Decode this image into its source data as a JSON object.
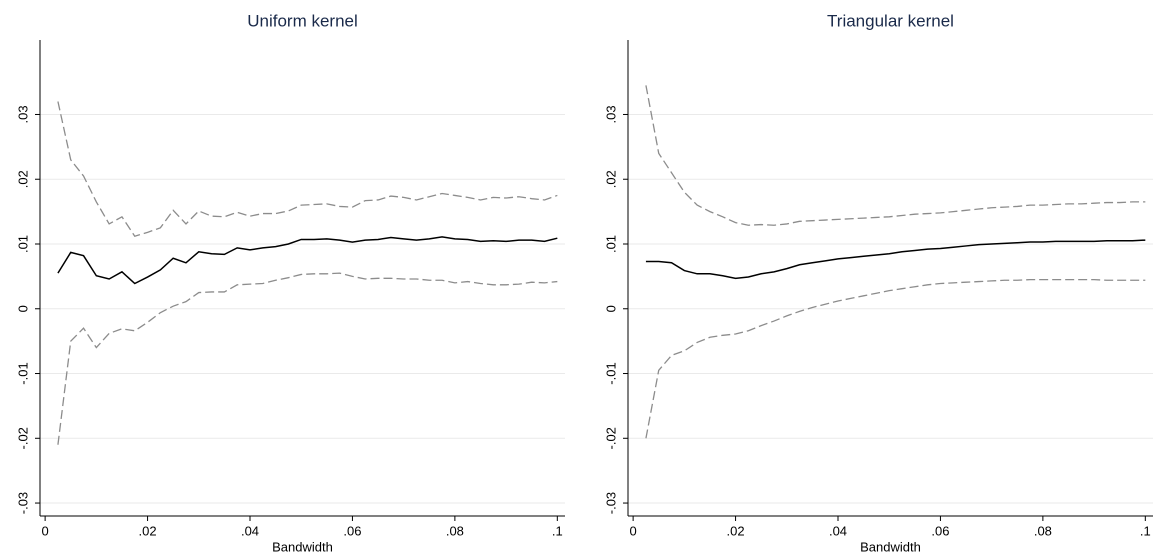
{
  "chart_data": [
    {
      "type": "line",
      "title": "Uniform kernel",
      "xlabel": "Bandwidth",
      "x": [
        0.0025,
        0.005,
        0.0075,
        0.01,
        0.0125,
        0.015,
        0.0175,
        0.02,
        0.0225,
        0.025,
        0.0275,
        0.03,
        0.0325,
        0.035,
        0.0375,
        0.04,
        0.0425,
        0.045,
        0.0475,
        0.05,
        0.0525,
        0.055,
        0.0575,
        0.06,
        0.0625,
        0.065,
        0.0675,
        0.07,
        0.0725,
        0.075,
        0.0775,
        0.08,
        0.0825,
        0.085,
        0.0875,
        0.09,
        0.0925,
        0.095,
        0.0975,
        0.1
      ],
      "series": [
        {
          "color": "#000000",
          "dash": false,
          "values": [
            0.0055,
            0.0087,
            0.0082,
            0.0051,
            0.0046,
            0.0057,
            0.0039,
            0.0049,
            0.006,
            0.0078,
            0.0071,
            0.0088,
            0.0085,
            0.0084,
            0.0094,
            0.0091,
            0.0094,
            0.0096,
            0.01,
            0.0107,
            0.0107,
            0.0108,
            0.0106,
            0.0103,
            0.0106,
            0.0107,
            0.011,
            0.0108,
            0.0106,
            0.0108,
            0.0111,
            0.0108,
            0.0107,
            0.0104,
            0.0105,
            0.0104,
            0.0106,
            0.0106,
            0.0104,
            0.0109
          ]
        },
        {
          "color": "#8c8c8c",
          "dash": true,
          "values": [
            0.032,
            0.023,
            0.0205,
            0.0165,
            0.0131,
            0.0142,
            0.0112,
            0.0118,
            0.0125,
            0.0152,
            0.0131,
            0.0151,
            0.0143,
            0.0142,
            0.0149,
            0.0143,
            0.0147,
            0.0147,
            0.0151,
            0.016,
            0.0161,
            0.0162,
            0.0158,
            0.0157,
            0.0167,
            0.0168,
            0.0174,
            0.0172,
            0.0168,
            0.0173,
            0.0178,
            0.0175,
            0.0172,
            0.0168,
            0.0172,
            0.0171,
            0.0173,
            0.017,
            0.0168,
            0.0175
          ]
        },
        {
          "color": "#8c8c8c",
          "dash": true,
          "values": [
            -0.021,
            -0.005,
            -0.003,
            -0.006,
            -0.0038,
            -0.0031,
            -0.0034,
            -0.0021,
            -0.0006,
            0.0004,
            0.0011,
            0.0025,
            0.0026,
            0.0026,
            0.0037,
            0.0038,
            0.0039,
            0.0044,
            0.0048,
            0.0053,
            0.0054,
            0.0054,
            0.0055,
            0.005,
            0.0046,
            0.0047,
            0.0047,
            0.0046,
            0.0046,
            0.0044,
            0.0044,
            0.004,
            0.0042,
            0.0039,
            0.0037,
            0.0037,
            0.0038,
            0.0041,
            0.004,
            0.0042
          ]
        }
      ],
      "xlim": [
        -0.001,
        0.1015
      ],
      "ylim": [
        -0.032,
        0.0415
      ],
      "xticks": [
        0,
        {
          "value": 0.02,
          "label": ".02"
        },
        {
          "value": 0.04,
          "label": ".04"
        },
        {
          "value": 0.06,
          "label": ".06"
        },
        {
          "value": 0.08,
          "label": ".08"
        },
        {
          "value": 0.1,
          "label": ".1"
        }
      ],
      "yticks": [
        {
          "value": -0.03,
          "label": "-.03"
        },
        {
          "value": -0.02,
          "label": "-.02"
        },
        {
          "value": -0.01,
          "label": "-.01"
        },
        0,
        {
          "value": 0.01,
          "label": ".01"
        },
        {
          "value": 0.02,
          "label": ".02"
        },
        {
          "value": 0.03,
          "label": ".03"
        }
      ],
      "grid": true
    },
    {
      "type": "line",
      "title": "Triangular kernel",
      "xlabel": "Bandwidth",
      "x": [
        0.0025,
        0.005,
        0.0075,
        0.01,
        0.0125,
        0.015,
        0.0175,
        0.02,
        0.0225,
        0.025,
        0.0275,
        0.03,
        0.0325,
        0.035,
        0.0375,
        0.04,
        0.0425,
        0.045,
        0.0475,
        0.05,
        0.0525,
        0.055,
        0.0575,
        0.06,
        0.0625,
        0.065,
        0.0675,
        0.07,
        0.0725,
        0.075,
        0.0775,
        0.08,
        0.0825,
        0.085,
        0.0875,
        0.09,
        0.0925,
        0.095,
        0.0975,
        0.1
      ],
      "series": [
        {
          "color": "#000000",
          "dash": false,
          "values": [
            0.0073,
            0.0073,
            0.0071,
            0.0059,
            0.0054,
            0.0054,
            0.0051,
            0.0047,
            0.0049,
            0.0054,
            0.0057,
            0.0062,
            0.0068,
            0.0071,
            0.0074,
            0.0077,
            0.0079,
            0.0081,
            0.0083,
            0.0085,
            0.0088,
            0.009,
            0.0092,
            0.0093,
            0.0095,
            0.0097,
            0.0099,
            0.01,
            0.0101,
            0.0102,
            0.0103,
            0.0103,
            0.0104,
            0.0104,
            0.0104,
            0.0104,
            0.0105,
            0.0105,
            0.0105,
            0.0106
          ]
        },
        {
          "color": "#8c8c8c",
          "dash": true,
          "values": [
            0.0345,
            0.024,
            0.021,
            0.018,
            0.016,
            0.015,
            0.0142,
            0.0133,
            0.0129,
            0.013,
            0.0129,
            0.0131,
            0.0135,
            0.0136,
            0.0137,
            0.0138,
            0.0139,
            0.014,
            0.0141,
            0.0142,
            0.0144,
            0.0146,
            0.0147,
            0.0148,
            0.015,
            0.0152,
            0.0154,
            0.0156,
            0.0157,
            0.0158,
            0.016,
            0.016,
            0.0161,
            0.0162,
            0.0162,
            0.0163,
            0.0164,
            0.0164,
            0.0165,
            0.0165
          ]
        },
        {
          "color": "#8c8c8c",
          "dash": true,
          "values": [
            -0.02,
            -0.0095,
            -0.0072,
            -0.0065,
            -0.0052,
            -0.0044,
            -0.0041,
            -0.0039,
            -0.0034,
            -0.0026,
            -0.0019,
            -0.0011,
            -0.0004,
            0.0002,
            0.0007,
            0.0012,
            0.0016,
            0.002,
            0.0024,
            0.0028,
            0.0031,
            0.0034,
            0.0037,
            0.0039,
            0.004,
            0.0041,
            0.0042,
            0.0043,
            0.0044,
            0.0044,
            0.0045,
            0.0045,
            0.0045,
            0.0045,
            0.0045,
            0.0045,
            0.0044,
            0.0044,
            0.0044,
            0.0044
          ]
        }
      ],
      "xlim": [
        -0.001,
        0.1015
      ],
      "ylim": [
        -0.032,
        0.0415
      ],
      "xticks": [
        0,
        {
          "value": 0.02,
          "label": ".02"
        },
        {
          "value": 0.04,
          "label": ".04"
        },
        {
          "value": 0.06,
          "label": ".06"
        },
        {
          "value": 0.08,
          "label": ".08"
        },
        {
          "value": 0.1,
          "label": ".1"
        }
      ],
      "yticks": [
        {
          "value": -0.03,
          "label": "-.03"
        },
        {
          "value": -0.02,
          "label": "-.02"
        },
        {
          "value": -0.01,
          "label": "-.01"
        },
        0,
        {
          "value": 0.01,
          "label": ".01"
        },
        {
          "value": 0.02,
          "label": ".02"
        },
        {
          "value": 0.03,
          "label": ".03"
        }
      ],
      "grid": true
    }
  ]
}
